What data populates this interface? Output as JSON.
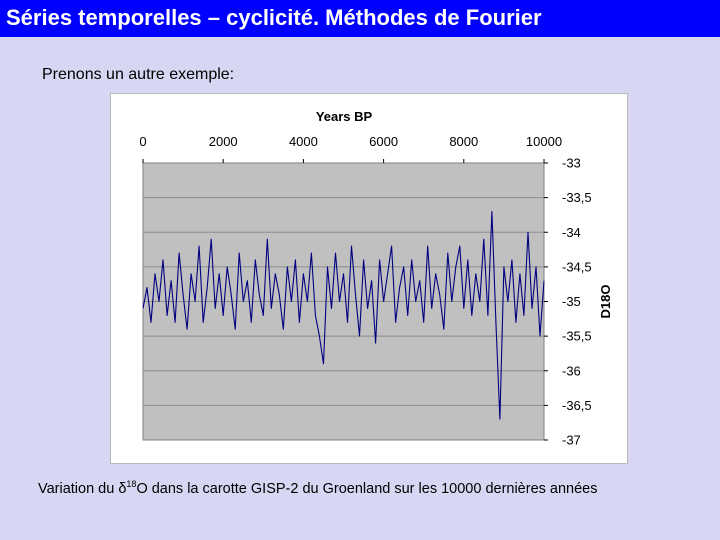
{
  "header": {
    "title": "Séries temporelles – cyclicité. Méthodes de Fourier"
  },
  "intro_text": "Prenons un autre exemple:",
  "caption": {
    "prefix": "Variation du ",
    "symbol": "δ",
    "superscript": "18",
    "suffix": "O dans la carotte GISP-2 du Groenland sur les 10000 dernières années"
  },
  "colors": {
    "title_bar": "#0000ff",
    "background": "#d7d7f3",
    "plot_area": "#c0c0c0",
    "series": "#000080"
  },
  "chart_data": {
    "type": "line",
    "xlabel": "Years BP",
    "ylabel": "D18O",
    "xlim": [
      0,
      10000
    ],
    "ylim": [
      -37,
      -33
    ],
    "y_inverted": true,
    "x_axis_position": "top",
    "y_axis_position": "right",
    "x_ticks": [
      0,
      2000,
      4000,
      6000,
      8000,
      10000
    ],
    "x_tick_labels": [
      "0",
      "2000",
      "4000",
      "6000",
      "8000",
      "10000"
    ],
    "y_ticks": [
      -33,
      -33.5,
      -34,
      -34.5,
      -35,
      -35.5,
      -36,
      -36.5,
      -37
    ],
    "y_tick_labels": [
      "-33",
      "-33,5",
      "-34",
      "-34,5",
      "-35",
      "-35,5",
      "-36",
      "-36,5",
      "-37"
    ],
    "grid": "horizontal",
    "series": [
      {
        "x": [
          0,
          100,
          200,
          300,
          400,
          500,
          600,
          700,
          800,
          900,
          1000,
          1100,
          1200,
          1300,
          1400,
          1500,
          1600,
          1700,
          1800,
          1900,
          2000,
          2100,
          2200,
          2300,
          2400,
          2500,
          2600,
          2700,
          2800,
          2900,
          3000,
          3100,
          3200,
          3300,
          3400,
          3500,
          3600,
          3700,
          3800,
          3900,
          4000,
          4100,
          4200,
          4300,
          4400,
          4500,
          4600,
          4700,
          4800,
          4900,
          5000,
          5100,
          5200,
          5300,
          5400,
          5500,
          5600,
          5700,
          5800,
          5900,
          6000,
          6100,
          6200,
          6300,
          6400,
          6500,
          6600,
          6700,
          6800,
          6900,
          7000,
          7100,
          7200,
          7300,
          7400,
          7500,
          7600,
          7700,
          7800,
          7900,
          8000,
          8100,
          8200,
          8300,
          8400,
          8500,
          8600,
          8700,
          8800,
          8900,
          9000,
          9100,
          9200,
          9300,
          9400,
          9500,
          9600,
          9700,
          9800,
          9900,
          10000
        ],
        "values": [
          -35.1,
          -34.8,
          -35.3,
          -34.6,
          -35.0,
          -34.4,
          -35.2,
          -34.7,
          -35.3,
          -34.3,
          -34.9,
          -35.4,
          -34.6,
          -35.0,
          -34.2,
          -35.3,
          -34.8,
          -34.1,
          -35.1,
          -34.6,
          -35.2,
          -34.5,
          -34.9,
          -35.4,
          -34.3,
          -35.0,
          -34.7,
          -35.3,
          -34.4,
          -34.9,
          -35.2,
          -34.1,
          -35.1,
          -34.6,
          -34.9,
          -35.4,
          -34.5,
          -35.0,
          -34.4,
          -35.3,
          -34.6,
          -35.0,
          -34.3,
          -35.2,
          -35.5,
          -35.9,
          -34.5,
          -35.1,
          -34.3,
          -35.0,
          -34.6,
          -35.3,
          -34.2,
          -34.9,
          -35.5,
          -34.4,
          -35.1,
          -34.7,
          -35.6,
          -34.4,
          -35.0,
          -34.6,
          -34.2,
          -35.3,
          -34.8,
          -34.5,
          -35.2,
          -34.4,
          -35.0,
          -34.7,
          -35.3,
          -34.2,
          -35.1,
          -34.6,
          -34.9,
          -35.4,
          -34.3,
          -35.0,
          -34.5,
          -34.2,
          -35.1,
          -34.4,
          -35.2,
          -34.6,
          -35.0,
          -34.1,
          -35.2,
          -33.7,
          -35.3,
          -36.7,
          -34.5,
          -35.0,
          -34.4,
          -35.3,
          -34.6,
          -35.2,
          -34.0,
          -35.1,
          -34.5,
          -35.5,
          -34.7
        ]
      }
    ]
  }
}
